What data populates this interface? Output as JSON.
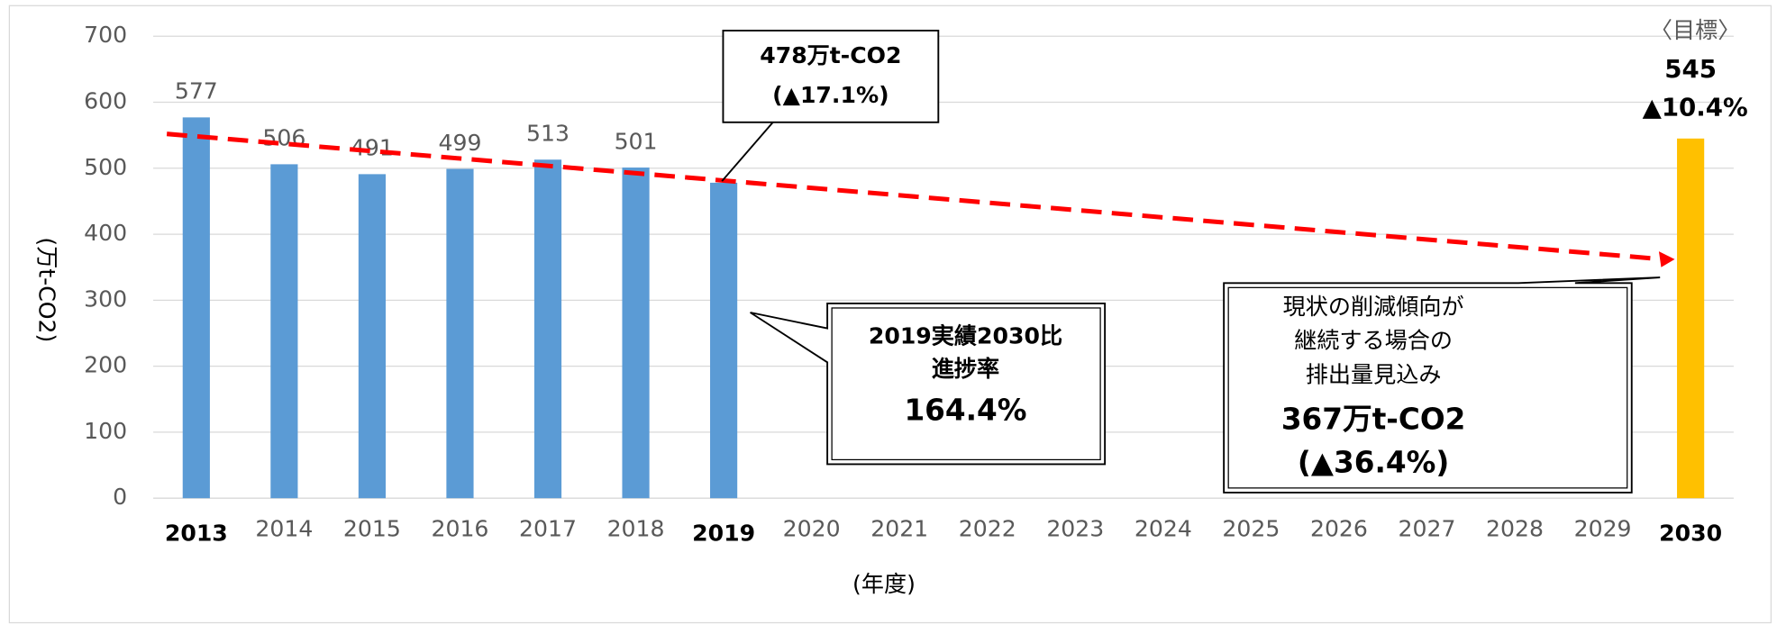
{
  "chart_data": {
    "type": "bar",
    "categories": [
      "2013",
      "2014",
      "2015",
      "2016",
      "2017",
      "2018",
      "2019",
      "2020",
      "2021",
      "2022",
      "2023",
      "2024",
      "2025",
      "2026",
      "2027",
      "2028",
      "2029",
      "2030"
    ],
    "values": [
      577,
      506,
      491,
      499,
      513,
      501,
      478,
      null,
      null,
      null,
      null,
      null,
      null,
      null,
      null,
      null,
      null,
      545
    ],
    "colors": [
      "#5b9bd5",
      "#5b9bd5",
      "#5b9bd5",
      "#5b9bd5",
      "#5b9bd5",
      "#5b9bd5",
      "#5b9bd5",
      null,
      null,
      null,
      null,
      null,
      null,
      null,
      null,
      null,
      null,
      "#ffc000"
    ],
    "ylim": [
      0,
      700
    ],
    "yticks": [
      0,
      100,
      200,
      300,
      400,
      500,
      600,
      700
    ],
    "grid": true,
    "y_label": "(万t-CO2)",
    "x_label": "(年度)",
    "trend_line": {
      "color": "#ff0000",
      "values": [
        552,
        362
      ]
    },
    "callout_2019": {
      "category": "2019",
      "lines": [
        "478万t-CO2",
        "(▲17.1%)"
      ]
    },
    "progress_note": [
      "2019実績2030比",
      "進捗率",
      "164.4%"
    ],
    "projection_note": [
      "現状の削減傾向が",
      "継続する場合の",
      "排出量見込み",
      "367万t-CO2",
      "(▲36.4%)"
    ],
    "target_note": [
      "〈目標〉",
      "▲10.4%"
    ]
  }
}
